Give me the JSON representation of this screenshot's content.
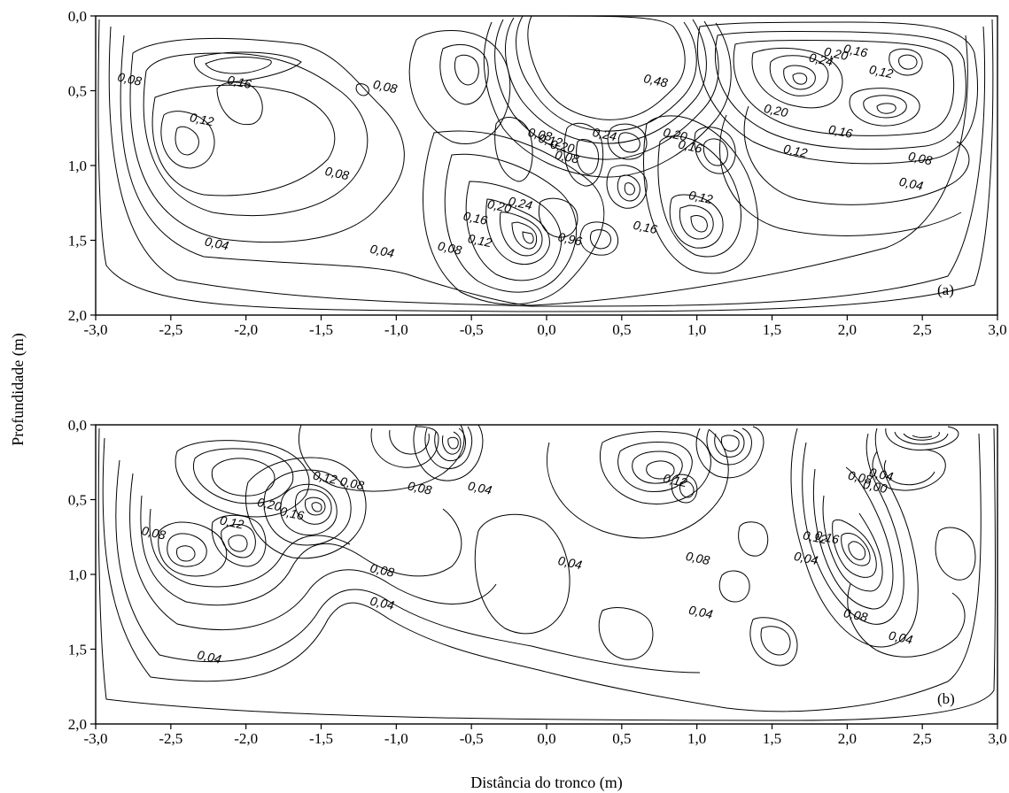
{
  "chart_data": [
    {
      "type": "contour",
      "panel_label": "(a)",
      "xlabel": "Distância do tronco (m)",
      "ylabel": "Profundidade (m)",
      "xlim": [
        -3.0,
        3.0
      ],
      "ylim": [
        0.0,
        2.0
      ],
      "y_inverted": true,
      "x_tick_labels": [
        "-3,0",
        "-2,5",
        "-2,0",
        "-1,5",
        "-1,0",
        "-0,5",
        "0,0",
        "0,5",
        "1,0",
        "1,5",
        "2,0",
        "2,5",
        "3,0"
      ],
      "y_tick_labels": [
        "0,0",
        "0,5",
        "1,0",
        "1,5",
        "2,0"
      ],
      "contour_interval": 0.02,
      "contour_labels": [
        {
          "text": "0,08",
          "x": -2.78,
          "y": 0.45
        },
        {
          "text": "0,16",
          "x": -2.05,
          "y": 0.47
        },
        {
          "text": "0,12",
          "x": -2.3,
          "y": 0.72
        },
        {
          "text": "0,08",
          "x": -1.08,
          "y": 0.5
        },
        {
          "text": "0,08",
          "x": -1.4,
          "y": 1.08
        },
        {
          "text": "0,04",
          "x": -2.2,
          "y": 1.55
        },
        {
          "text": "0,04",
          "x": -1.1,
          "y": 1.6
        },
        {
          "text": "0,08",
          "x": -0.65,
          "y": 1.58
        },
        {
          "text": "0,12",
          "x": -0.45,
          "y": 1.53
        },
        {
          "text": "0,16",
          "x": -0.48,
          "y": 1.38
        },
        {
          "text": "0,20",
          "x": -0.32,
          "y": 1.3
        },
        {
          "text": "0,24",
          "x": -0.18,
          "y": 1.28
        },
        {
          "text": "0,08",
          "x": -0.05,
          "y": 0.82
        },
        {
          "text": "0,12",
          "x": 0.02,
          "y": 0.86
        },
        {
          "text": "0,20",
          "x": 0.1,
          "y": 0.9
        },
        {
          "text": "0,08",
          "x": 0.13,
          "y": 0.97
        },
        {
          "text": "0,24",
          "x": 0.38,
          "y": 0.82
        },
        {
          "text": "0,48",
          "x": 0.72,
          "y": 0.46
        },
        {
          "text": "0,20",
          "x": 0.85,
          "y": 0.82
        },
        {
          "text": "0,16",
          "x": 0.95,
          "y": 0.9
        },
        {
          "text": "0,16",
          "x": 0.65,
          "y": 1.44
        },
        {
          "text": "0,12",
          "x": 1.02,
          "y": 1.24
        },
        {
          "text": "0,24",
          "x": 1.82,
          "y": 0.32
        },
        {
          "text": "0,20",
          "x": 1.92,
          "y": 0.28
        },
        {
          "text": "0,16",
          "x": 2.05,
          "y": 0.26
        },
        {
          "text": "0,12",
          "x": 2.22,
          "y": 0.4
        },
        {
          "text": "0,20",
          "x": 1.52,
          "y": 0.66
        },
        {
          "text": "0,16",
          "x": 1.95,
          "y": 0.8
        },
        {
          "text": "0,12",
          "x": 1.65,
          "y": 0.93
        },
        {
          "text": "0,08",
          "x": 2.48,
          "y": 0.98
        },
        {
          "text": "0,04",
          "x": 2.42,
          "y": 1.15
        },
        {
          "text": "0,96",
          "x": 0.15,
          "y": 1.52
        }
      ]
    },
    {
      "type": "contour",
      "panel_label": "(b)",
      "xlabel": "Distância do tronco (m)",
      "ylabel": "Profundidade (m)",
      "xlim": [
        -3.0,
        3.0
      ],
      "ylim": [
        0.0,
        2.0
      ],
      "y_inverted": true,
      "x_tick_labels": [
        "-3,0",
        "-2,5",
        "-2,0",
        "-1,5",
        "-1,0",
        "-0,5",
        "0,0",
        "0,5",
        "1,0",
        "1,5",
        "2,0",
        "2,5",
        "3,0"
      ],
      "y_tick_labels": [
        "0,0",
        "0,5",
        "1,0",
        "1,5",
        "2,0"
      ],
      "contour_interval": 0.02,
      "contour_labels": [
        {
          "text": "0,08",
          "x": -2.62,
          "y": 0.75
        },
        {
          "text": "0,12",
          "x": -2.1,
          "y": 0.68
        },
        {
          "text": "0,20",
          "x": -1.85,
          "y": 0.56
        },
        {
          "text": "0,16",
          "x": -1.7,
          "y": 0.62
        },
        {
          "text": "0,12",
          "x": -1.48,
          "y": 0.38
        },
        {
          "text": "0,08",
          "x": -1.3,
          "y": 0.42
        },
        {
          "text": "0,08",
          "x": -1.1,
          "y": 1.0
        },
        {
          "text": "0,04",
          "x": -1.1,
          "y": 1.22
        },
        {
          "text": "0,04",
          "x": -2.25,
          "y": 1.58
        },
        {
          "text": "0,08",
          "x": -0.85,
          "y": 0.45
        },
        {
          "text": "0,04",
          "x": -0.45,
          "y": 0.45
        },
        {
          "text": "0,04",
          "x": 0.15,
          "y": 0.95
        },
        {
          "text": "0,12",
          "x": 0.85,
          "y": 0.4
        },
        {
          "text": "0,08",
          "x": 1.0,
          "y": 0.92
        },
        {
          "text": "0,04",
          "x": 1.02,
          "y": 1.28
        },
        {
          "text": "0,12",
          "x": 1.78,
          "y": 0.78
        },
        {
          "text": "0,16",
          "x": 1.86,
          "y": 0.78
        },
        {
          "text": "0,04",
          "x": 1.72,
          "y": 0.92
        },
        {
          "text": "0,08",
          "x": 2.08,
          "y": 0.38
        },
        {
          "text": "0,04",
          "x": 2.22,
          "y": 0.36
        },
        {
          "text": "0,00",
          "x": 2.18,
          "y": 0.44
        },
        {
          "text": "0,08",
          "x": 2.05,
          "y": 1.3
        },
        {
          "text": "0,04",
          "x": 2.35,
          "y": 1.45
        }
      ]
    }
  ]
}
